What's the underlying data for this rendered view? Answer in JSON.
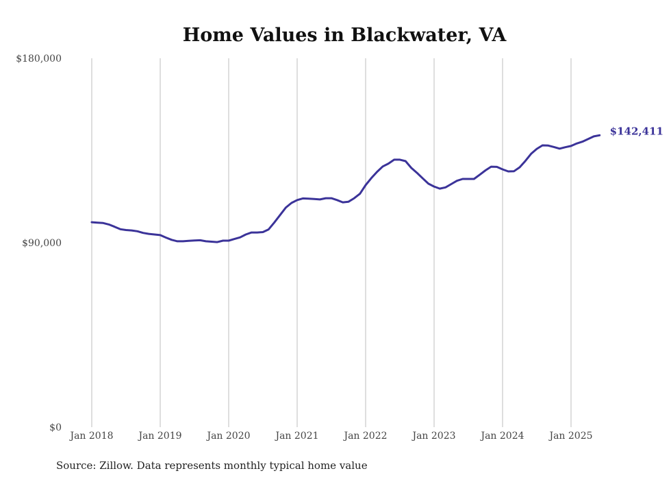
{
  "chart_data": {
    "type": "line",
    "title": "Home Values in Blackwater, VA",
    "xlabel": "",
    "ylabel": "",
    "source": "Source: Zillow. Data represents monthly typical home value",
    "ylim": [
      0,
      180000
    ],
    "y_ticks": [
      {
        "value": 0,
        "label": "$0"
      },
      {
        "value": 90000,
        "label": "$90,000"
      },
      {
        "value": 180000,
        "label": "$180,000"
      }
    ],
    "x_ticks": [
      {
        "month_index": 0,
        "label": "Jan 2018"
      },
      {
        "month_index": 12,
        "label": "Jan 2019"
      },
      {
        "month_index": 24,
        "label": "Jan 2020"
      },
      {
        "month_index": 36,
        "label": "Jan 2021"
      },
      {
        "month_index": 48,
        "label": "Jan 2022"
      },
      {
        "month_index": 60,
        "label": "Jan 2023"
      },
      {
        "month_index": 72,
        "label": "Jan 2024"
      },
      {
        "month_index": 84,
        "label": "Jan 2025"
      }
    ],
    "grid": "vertical",
    "x_start": "Jan 2018",
    "x_end": "Jun 2025",
    "series": [
      {
        "name": "Typical home value",
        "color": "#3b3399",
        "end_label": "$142,411",
        "values": [
          100000,
          99800,
          99600,
          98900,
          97800,
          96600,
          96200,
          96000,
          95600,
          94800,
          94300,
          94000,
          93700,
          92500,
          91400,
          90700,
          90700,
          90900,
          91100,
          91200,
          90700,
          90500,
          90300,
          91000,
          91000,
          91800,
          92600,
          94000,
          95000,
          95000,
          95200,
          96500,
          99900,
          103500,
          107100,
          109400,
          110800,
          111600,
          111500,
          111300,
          111100,
          111700,
          111700,
          110800,
          109700,
          110000,
          111700,
          113900,
          118100,
          121500,
          124600,
          127200,
          128600,
          130500,
          130500,
          129800,
          126500,
          124100,
          121400,
          118800,
          117400,
          116400,
          117000,
          118600,
          120200,
          121100,
          121100,
          121100,
          123200,
          125300,
          127100,
          127000,
          125800,
          124800,
          124900,
          126800,
          129900,
          133400,
          135800,
          137500,
          137400,
          136700,
          135900,
          136600,
          137200,
          138400,
          139300,
          140600,
          141900,
          142411
        ]
      }
    ]
  }
}
